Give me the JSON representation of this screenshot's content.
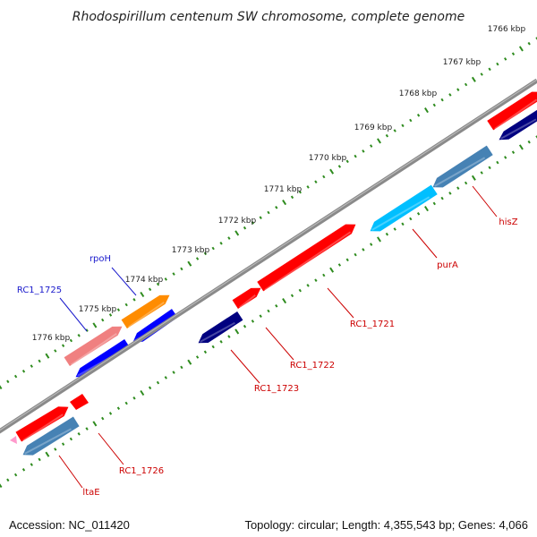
{
  "title": "Rhodospirillum centenum SW chromosome, complete genome",
  "accession_label": "Accession: NC_011420",
  "stats_label": "Topology: circular; Length: 4,355,543 bp; Genes: 4,066",
  "colors": {
    "backbone": "#888888",
    "ticks": "#2e8b1e",
    "label_red": "#cc0000",
    "label_blue": "#1a1acc"
  },
  "ticks": [
    {
      "label": "1766 kbp"
    },
    {
      "label": "1767 kbp"
    },
    {
      "label": "1768 kbp"
    },
    {
      "label": "1769 kbp"
    },
    {
      "label": "1770 kbp"
    },
    {
      "label": "1771 kbp"
    },
    {
      "label": "1772 kbp"
    },
    {
      "label": "1773 kbp"
    },
    {
      "label": "1774 kbp"
    },
    {
      "label": "1775 kbp"
    },
    {
      "label": "1776 kbp"
    }
  ],
  "genes": [
    {
      "name": "hisZ",
      "color": "#ff0000",
      "strand": "+"
    },
    {
      "name": "",
      "color": "#000080",
      "strand": "-"
    },
    {
      "name": "purA",
      "color": "#00bfff",
      "strand": "-"
    },
    {
      "name": "",
      "color": "#4682b4",
      "strand": "-"
    },
    {
      "name": "RC1_1721",
      "color": "#ff0000",
      "strand": "+"
    },
    {
      "name": "RC1_1722",
      "color": "#ff0000",
      "strand": "+"
    },
    {
      "name": "RC1_1723",
      "color": "#000080",
      "strand": "-"
    },
    {
      "name": "rpoH",
      "color": "#ff8c00",
      "strand": "+"
    },
    {
      "name": "RC1_1725",
      "color": "#f08080",
      "strand": "+"
    },
    {
      "name": "",
      "color": "#0000ff",
      "strand": "-"
    },
    {
      "name": "",
      "color": "#0000ff",
      "strand": "-"
    },
    {
      "name": "RC1_1726",
      "color": "#ff0000",
      "strand": "+"
    },
    {
      "name": "ltaE",
      "color": "#4682b4",
      "strand": "-"
    }
  ],
  "labels": [
    {
      "text": "hisZ",
      "color": "#cc0000"
    },
    {
      "text": "purA",
      "color": "#cc0000"
    },
    {
      "text": "RC1_1721",
      "color": "#cc0000"
    },
    {
      "text": "RC1_1722",
      "color": "#cc0000"
    },
    {
      "text": "RC1_1723",
      "color": "#cc0000"
    },
    {
      "text": "rpoH",
      "color": "#1a1acc"
    },
    {
      "text": "RC1_1725",
      "color": "#1a1acc"
    },
    {
      "text": "RC1_1726",
      "color": "#cc0000"
    },
    {
      "text": "ltaE",
      "color": "#cc0000"
    }
  ]
}
